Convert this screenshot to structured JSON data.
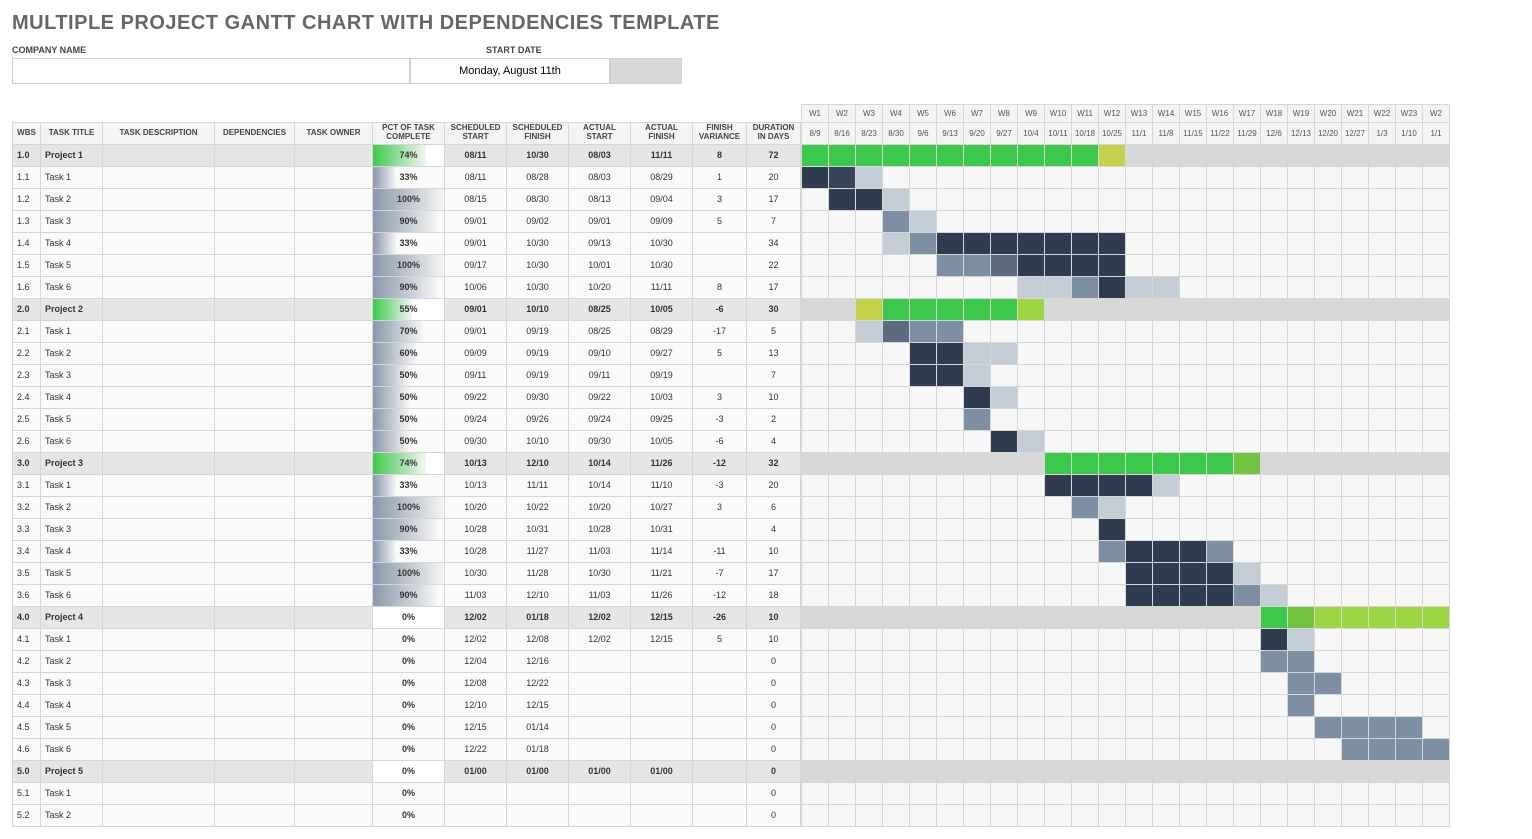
{
  "title": "MULTIPLE PROJECT GANTT CHART WITH DEPENDENCIES TEMPLATE",
  "company_label": "COMPANY NAME",
  "company_value": "",
  "startdate_label": "START DATE",
  "startdate_value": "Monday, August 11th",
  "columns": [
    "WBS",
    "TASK TITLE",
    "TASK DESCRIPTION",
    "DEPENDENCIES",
    "TASK OWNER",
    "PCT OF TASK COMPLETE",
    "SCHEDULED START",
    "SCHEDULED FINISH",
    "ACTUAL START",
    "ACTUAL FINISH",
    "FINISH VARIANCE",
    "DURATION IN DAYS"
  ],
  "weeks": [
    "W1",
    "W2",
    "W3",
    "W4",
    "W5",
    "W6",
    "W7",
    "W8",
    "W9",
    "W10",
    "W11",
    "W12",
    "W13",
    "W14",
    "W15",
    "W16",
    "W17",
    "W18",
    "W19",
    "W20",
    "W21",
    "W22",
    "W23",
    "W2"
  ],
  "dates": [
    "8/9",
    "8/16",
    "8/23",
    "8/30",
    "9/6",
    "9/13",
    "9/20",
    "9/27",
    "10/4",
    "10/11",
    "10/18",
    "10/25",
    "11/1",
    "11/8",
    "11/15",
    "11/22",
    "11/29",
    "12/6",
    "12/13",
    "12/20",
    "12/27",
    "1/3",
    "1/10",
    "1/1"
  ],
  "colors": {
    "project_fill_green": "#3cc94b",
    "project_fill_light": "#b8d749",
    "bar_dark": "#2f3b4f",
    "bar_med": "#7d8fa3",
    "bar_light": "#c4ccd6",
    "proj_row_bg": "#d8d8d8",
    "pct_task_grad_a": "#8b97aa",
    "pct_task_grad_b": "#f5f5f5",
    "pct_proj_grad_a": "#3cc94b",
    "pct_proj_grad_b": "#f5f5f5"
  },
  "rows": [
    {
      "wbs": "1.0",
      "title": "Project 1",
      "project": true,
      "pct": "74%",
      "pctv": 74,
      "ss": "08/11",
      "sf": "10/30",
      "as": "08/03",
      "af": "11/11",
      "fv": "8",
      "dur": "72",
      "bars": [
        {
          "s": 0,
          "e": 11,
          "c": "#3cc94b"
        },
        {
          "s": 11,
          "e": 12,
          "c": "#c3d24a"
        },
        {
          "s": 12,
          "e": 14,
          "c": "#d8d8d8"
        }
      ]
    },
    {
      "wbs": "1.1",
      "title": "Task 1",
      "pct": "33%",
      "pctv": 33,
      "ss": "08/11",
      "sf": "08/28",
      "as": "08/03",
      "af": "08/29",
      "fv": "1",
      "dur": "20",
      "bars": [
        {
          "s": 0,
          "e": 1,
          "c": "#2f3b4f"
        },
        {
          "s": 1,
          "e": 2,
          "c": "#36455a"
        },
        {
          "s": 2,
          "e": 3,
          "c": "#c4ccd6"
        }
      ]
    },
    {
      "wbs": "1.2",
      "title": "Task 2",
      "pct": "100%",
      "pctv": 100,
      "ss": "08/15",
      "sf": "08/30",
      "as": "08/13",
      "af": "09/04",
      "fv": "3",
      "dur": "17",
      "bars": [
        {
          "s": 1,
          "e": 3,
          "c": "#2f3b4f"
        },
        {
          "s": 3,
          "e": 4,
          "c": "#c4ccd6"
        }
      ]
    },
    {
      "wbs": "1.3",
      "title": "Task 3",
      "pct": "90%",
      "pctv": 90,
      "ss": "09/01",
      "sf": "09/02",
      "as": "09/01",
      "af": "09/09",
      "fv": "5",
      "dur": "7",
      "bars": [
        {
          "s": 3,
          "e": 4,
          "c": "#7d8fa3"
        },
        {
          "s": 4,
          "e": 5,
          "c": "#c4ccd6"
        }
      ]
    },
    {
      "wbs": "1.4",
      "title": "Task 4",
      "pct": "33%",
      "pctv": 33,
      "ss": "09/01",
      "sf": "10/30",
      "as": "09/13",
      "af": "10/30",
      "fv": "",
      "dur": "34",
      "bars": [
        {
          "s": 3,
          "e": 4,
          "c": "#c4ccd6"
        },
        {
          "s": 4,
          "e": 5,
          "c": "#7d8fa3"
        },
        {
          "s": 5,
          "e": 12,
          "c": "#2f3b4f"
        }
      ]
    },
    {
      "wbs": "1.5",
      "title": "Task 5",
      "pct": "100%",
      "pctv": 100,
      "ss": "09/17",
      "sf": "10/30",
      "as": "10/01",
      "af": "10/30",
      "fv": "",
      "dur": "22",
      "bars": [
        {
          "s": 5,
          "e": 7,
          "c": "#7d8fa3"
        },
        {
          "s": 7,
          "e": 8,
          "c": "#5c6b80"
        },
        {
          "s": 8,
          "e": 12,
          "c": "#2f3b4f"
        }
      ]
    },
    {
      "wbs": "1.6",
      "title": "Task 6",
      "pct": "90%",
      "pctv": 90,
      "ss": "10/06",
      "sf": "10/30",
      "as": "10/20",
      "af": "11/11",
      "fv": "8",
      "dur": "17",
      "bars": [
        {
          "s": 8,
          "e": 10,
          "c": "#c4ccd6"
        },
        {
          "s": 10,
          "e": 11,
          "c": "#7d8fa3"
        },
        {
          "s": 11,
          "e": 12,
          "c": "#2f3b4f"
        },
        {
          "s": 12,
          "e": 14,
          "c": "#c4ccd6"
        }
      ]
    },
    {
      "wbs": "2.0",
      "title": "Project 2",
      "project": true,
      "pct": "55%",
      "pctv": 55,
      "ss": "09/01",
      "sf": "10/10",
      "as": "08/25",
      "af": "10/05",
      "fv": "-6",
      "dur": "30",
      "bars": [
        {
          "s": 2,
          "e": 3,
          "c": "#c3d24a"
        },
        {
          "s": 3,
          "e": 8,
          "c": "#3cc94b"
        },
        {
          "s": 8,
          "e": 9,
          "c": "#9dd642"
        }
      ]
    },
    {
      "wbs": "2.1",
      "title": "Task 1",
      "pct": "70%",
      "pctv": 70,
      "ss": "09/01",
      "sf": "09/19",
      "as": "08/25",
      "af": "08/29",
      "fv": "-17",
      "dur": "5",
      "bars": [
        {
          "s": 2,
          "e": 3,
          "c": "#c4ccd6"
        },
        {
          "s": 3,
          "e": 4,
          "c": "#5c6b80"
        },
        {
          "s": 4,
          "e": 6,
          "c": "#7d8fa3"
        }
      ]
    },
    {
      "wbs": "2.2",
      "title": "Task 2",
      "pct": "60%",
      "pctv": 60,
      "ss": "09/09",
      "sf": "09/19",
      "as": "09/10",
      "af": "09/27",
      "fv": "5",
      "dur": "13",
      "bars": [
        {
          "s": 4,
          "e": 6,
          "c": "#2f3b4f"
        },
        {
          "s": 6,
          "e": 8,
          "c": "#c4ccd6"
        }
      ]
    },
    {
      "wbs": "2.3",
      "title": "Task 3",
      "pct": "50%",
      "pctv": 50,
      "ss": "09/11",
      "sf": "09/19",
      "as": "09/11",
      "af": "09/19",
      "fv": "",
      "dur": "7",
      "bars": [
        {
          "s": 4,
          "e": 6,
          "c": "#2f3b4f"
        },
        {
          "s": 6,
          "e": 7,
          "c": "#c4ccd6"
        }
      ]
    },
    {
      "wbs": "2.4",
      "title": "Task 4",
      "pct": "50%",
      "pctv": 50,
      "ss": "09/22",
      "sf": "09/30",
      "as": "09/22",
      "af": "10/03",
      "fv": "3",
      "dur": "10",
      "bars": [
        {
          "s": 6,
          "e": 7,
          "c": "#2f3b4f"
        },
        {
          "s": 7,
          "e": 8,
          "c": "#c4ccd6"
        }
      ]
    },
    {
      "wbs": "2.5",
      "title": "Task 5",
      "pct": "50%",
      "pctv": 50,
      "ss": "09/24",
      "sf": "09/26",
      "as": "09/24",
      "af": "09/25",
      "fv": "-3",
      "dur": "2",
      "bars": [
        {
          "s": 6,
          "e": 7,
          "c": "#7d8fa3"
        }
      ]
    },
    {
      "wbs": "2.6",
      "title": "Task 6",
      "pct": "50%",
      "pctv": 50,
      "ss": "09/30",
      "sf": "10/10",
      "as": "09/30",
      "af": "10/05",
      "fv": "-6",
      "dur": "4",
      "bars": [
        {
          "s": 7,
          "e": 8,
          "c": "#2f3b4f"
        },
        {
          "s": 8,
          "e": 9,
          "c": "#c4ccd6"
        }
      ]
    },
    {
      "wbs": "3.0",
      "title": "Project 3",
      "project": true,
      "pct": "74%",
      "pctv": 74,
      "ss": "10/13",
      "sf": "12/10",
      "as": "10/14",
      "af": "11/26",
      "fv": "-12",
      "dur": "32",
      "bars": [
        {
          "s": 9,
          "e": 16,
          "c": "#3cc94b"
        },
        {
          "s": 16,
          "e": 17,
          "c": "#72c43e"
        },
        {
          "s": 17,
          "e": 18,
          "c": "#d8d8d8"
        }
      ]
    },
    {
      "wbs": "3.1",
      "title": "Task 1",
      "pct": "33%",
      "pctv": 33,
      "ss": "10/13",
      "sf": "11/11",
      "as": "10/14",
      "af": "11/10",
      "fv": "-3",
      "dur": "20",
      "bars": [
        {
          "s": 9,
          "e": 13,
          "c": "#2f3b4f"
        },
        {
          "s": 13,
          "e": 14,
          "c": "#c4ccd6"
        }
      ]
    },
    {
      "wbs": "3.2",
      "title": "Task 2",
      "pct": "100%",
      "pctv": 100,
      "ss": "10/20",
      "sf": "10/22",
      "as": "10/20",
      "af": "10/27",
      "fv": "3",
      "dur": "6",
      "bars": [
        {
          "s": 10,
          "e": 11,
          "c": "#7d8fa3"
        },
        {
          "s": 11,
          "e": 12,
          "c": "#c4ccd6"
        }
      ]
    },
    {
      "wbs": "3.3",
      "title": "Task 3",
      "pct": "90%",
      "pctv": 90,
      "ss": "10/28",
      "sf": "10/31",
      "as": "10/28",
      "af": "10/31",
      "fv": "",
      "dur": "4",
      "bars": [
        {
          "s": 11,
          "e": 12,
          "c": "#2f3b4f"
        }
      ]
    },
    {
      "wbs": "3.4",
      "title": "Task 4",
      "pct": "33%",
      "pctv": 33,
      "ss": "10/28",
      "sf": "11/27",
      "as": "11/03",
      "af": "11/14",
      "fv": "-11",
      "dur": "10",
      "bars": [
        {
          "s": 11,
          "e": 12,
          "c": "#7d8fa3"
        },
        {
          "s": 12,
          "e": 15,
          "c": "#2f3b4f"
        },
        {
          "s": 15,
          "e": 16,
          "c": "#7d8fa3"
        }
      ]
    },
    {
      "wbs": "3.5",
      "title": "Task 5",
      "pct": "100%",
      "pctv": 100,
      "ss": "10/30",
      "sf": "11/28",
      "as": "10/30",
      "af": "11/21",
      "fv": "-7",
      "dur": "17",
      "bars": [
        {
          "s": 12,
          "e": 16,
          "c": "#2f3b4f"
        },
        {
          "s": 16,
          "e": 17,
          "c": "#c4ccd6"
        }
      ]
    },
    {
      "wbs": "3.6",
      "title": "Task 6",
      "pct": "90%",
      "pctv": 90,
      "ss": "11/03",
      "sf": "12/10",
      "as": "11/03",
      "af": "11/26",
      "fv": "-12",
      "dur": "18",
      "bars": [
        {
          "s": 12,
          "e": 16,
          "c": "#2f3b4f"
        },
        {
          "s": 16,
          "e": 17,
          "c": "#7d8fa3"
        },
        {
          "s": 17,
          "e": 18,
          "c": "#c4ccd6"
        }
      ]
    },
    {
      "wbs": "4.0",
      "title": "Project 4",
      "project": true,
      "pct": "0%",
      "pctv": 0,
      "ss": "12/02",
      "sf": "01/18",
      "as": "12/02",
      "af": "12/15",
      "fv": "-26",
      "dur": "10",
      "bars": [
        {
          "s": 17,
          "e": 18,
          "c": "#3cc94b"
        },
        {
          "s": 18,
          "e": 19,
          "c": "#72c43e"
        },
        {
          "s": 19,
          "e": 24,
          "c": "#9dd642"
        }
      ]
    },
    {
      "wbs": "4.1",
      "title": "Task 1",
      "pct": "0%",
      "pctv": 0,
      "ss": "12/02",
      "sf": "12/08",
      "as": "12/02",
      "af": "12/15",
      "fv": "5",
      "dur": "10",
      "bars": [
        {
          "s": 17,
          "e": 18,
          "c": "#2f3b4f"
        },
        {
          "s": 18,
          "e": 19,
          "c": "#c4ccd6"
        }
      ]
    },
    {
      "wbs": "4.2",
      "title": "Task 2",
      "pct": "0%",
      "pctv": 0,
      "ss": "12/04",
      "sf": "12/16",
      "as": "",
      "af": "",
      "fv": "",
      "dur": "0",
      "bars": [
        {
          "s": 17,
          "e": 19,
          "c": "#7d8fa3"
        }
      ]
    },
    {
      "wbs": "4.3",
      "title": "Task 3",
      "pct": "0%",
      "pctv": 0,
      "ss": "12/08",
      "sf": "12/22",
      "as": "",
      "af": "",
      "fv": "",
      "dur": "0",
      "bars": [
        {
          "s": 18,
          "e": 20,
          "c": "#7d8fa3"
        }
      ]
    },
    {
      "wbs": "4.4",
      "title": "Task 4",
      "pct": "0%",
      "pctv": 0,
      "ss": "12/10",
      "sf": "12/15",
      "as": "",
      "af": "",
      "fv": "",
      "dur": "0",
      "bars": [
        {
          "s": 18,
          "e": 19,
          "c": "#7d8fa3"
        }
      ]
    },
    {
      "wbs": "4.5",
      "title": "Task 5",
      "pct": "0%",
      "pctv": 0,
      "ss": "12/15",
      "sf": "01/14",
      "as": "",
      "af": "",
      "fv": "",
      "dur": "0",
      "bars": [
        {
          "s": 19,
          "e": 23,
          "c": "#7d8fa3"
        }
      ]
    },
    {
      "wbs": "4.6",
      "title": "Task 6",
      "pct": "0%",
      "pctv": 0,
      "ss": "12/22",
      "sf": "01/18",
      "as": "",
      "af": "",
      "fv": "",
      "dur": "0",
      "bars": [
        {
          "s": 20,
          "e": 24,
          "c": "#7d8fa3"
        }
      ]
    },
    {
      "wbs": "5.0",
      "title": "Project 5",
      "project": true,
      "pct": "0%",
      "pctv": 0,
      "ss": "01/00",
      "sf": "01/00",
      "as": "01/00",
      "af": "01/00",
      "fv": "",
      "dur": "0",
      "bars": []
    },
    {
      "wbs": "5.1",
      "title": "Task 1",
      "pct": "0%",
      "pctv": 0,
      "ss": "",
      "sf": "",
      "as": "",
      "af": "",
      "fv": "",
      "dur": "0",
      "bars": []
    },
    {
      "wbs": "5.2",
      "title": "Task 2",
      "pct": "0%",
      "pctv": 0,
      "ss": "",
      "sf": "",
      "as": "",
      "af": "",
      "fv": "",
      "dur": "0",
      "bars": []
    }
  ]
}
